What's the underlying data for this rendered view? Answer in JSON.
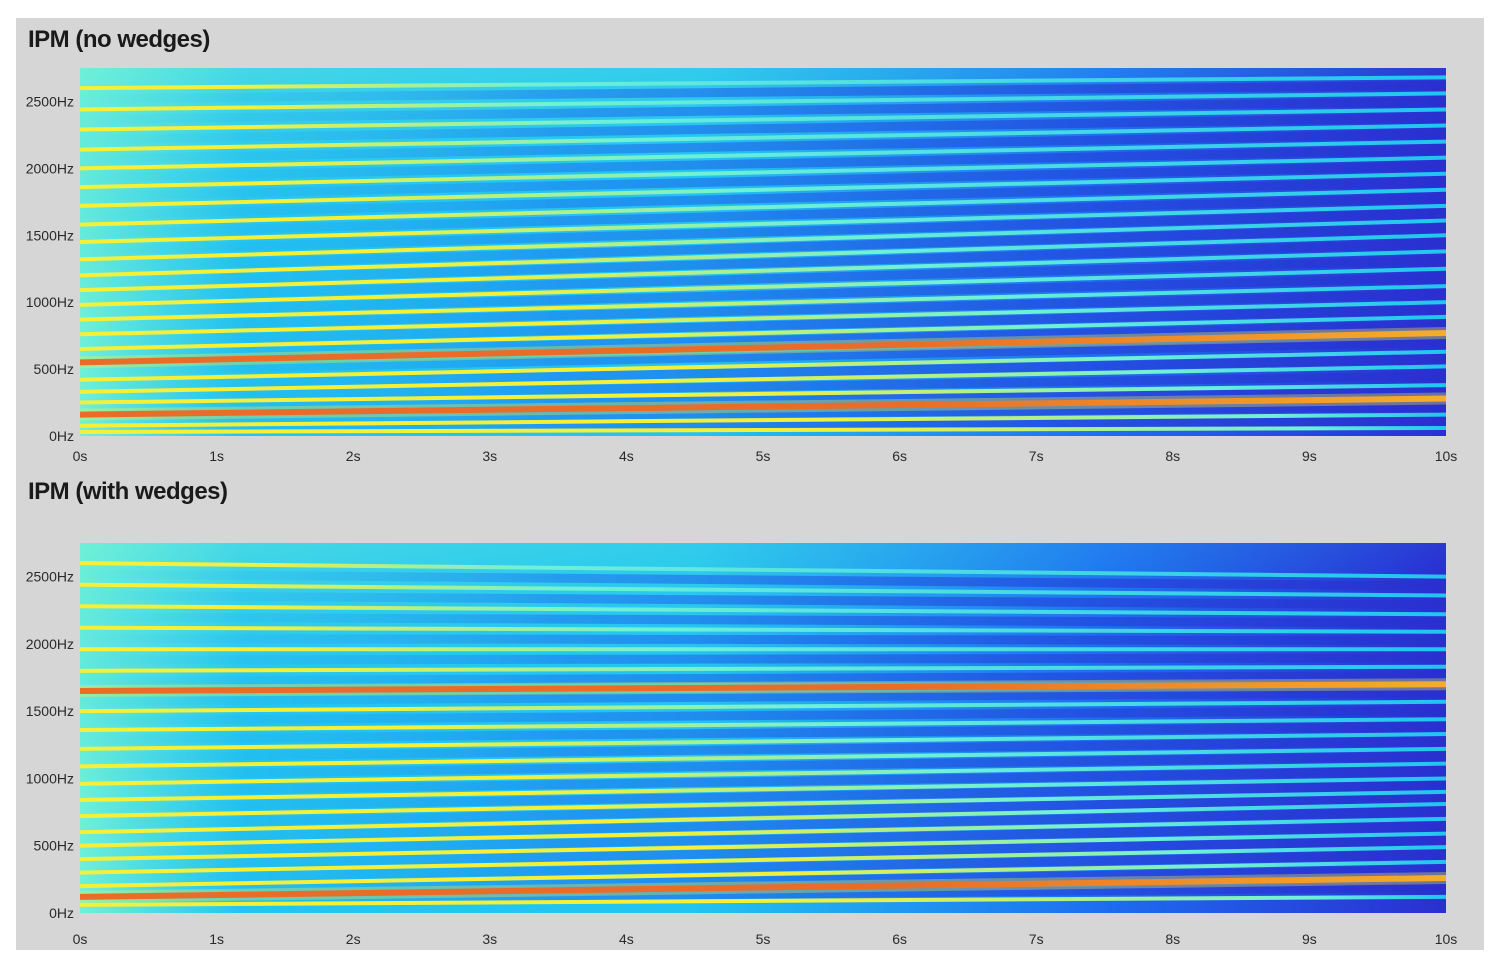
{
  "chart_data": [
    {
      "type": "heatmap",
      "title": "IPM (no wedges)",
      "x_tick_labels": [
        "0s",
        "1s",
        "2s",
        "3s",
        "4s",
        "5s",
        "6s",
        "7s",
        "8s",
        "9s",
        "10s"
      ],
      "y_tick_labels": [
        "0Hz",
        "500Hz",
        "1000Hz",
        "1500Hz",
        "2000Hz",
        "2500Hz"
      ],
      "x_ticks_s": [
        0,
        1,
        2,
        3,
        4,
        5,
        6,
        7,
        8,
        9,
        10
      ],
      "y_ticks_hz": [
        0,
        500,
        1000,
        1500,
        2000,
        2500
      ],
      "xlim": [
        0,
        10
      ],
      "ylim": [
        0,
        2750
      ],
      "colormap": [
        "#2a2fd0",
        "#1d6df0",
        "#22c4f0",
        "#6ff0d8",
        "#f4f03a",
        "#f58a22",
        "#e3261f"
      ],
      "partials": {
        "start_hz": [
          30,
          77,
          160,
          250,
          330,
          420,
          550,
          650,
          760,
          870,
          980,
          1090,
          1200,
          1320,
          1450,
          1580,
          1720,
          1860,
          2000,
          2140,
          2290,
          2440,
          2600
        ],
        "end_hz": [
          60,
          160,
          280,
          380,
          520,
          630,
          770,
          890,
          1000,
          1120,
          1250,
          1380,
          1500,
          1610,
          1720,
          1840,
          1960,
          2080,
          2200,
          2320,
          2440,
          2560,
          2680
        ],
        "strong_index": [
          2,
          6
        ]
      }
    },
    {
      "type": "heatmap",
      "title": "IPM (with wedges)",
      "x_tick_labels": [
        "0s",
        "1s",
        "2s",
        "3s",
        "4s",
        "5s",
        "6s",
        "7s",
        "8s",
        "9s",
        "10s"
      ],
      "y_tick_labels": [
        "0Hz",
        "500Hz",
        "1000Hz",
        "1500Hz",
        "2000Hz",
        "2500Hz"
      ],
      "x_ticks_s": [
        0,
        1,
        2,
        3,
        4,
        5,
        6,
        7,
        8,
        9,
        10
      ],
      "y_ticks_hz": [
        0,
        500,
        1000,
        1500,
        2000,
        2500
      ],
      "xlim": [
        0,
        10
      ],
      "ylim": [
        0,
        2750
      ],
      "colormap": [
        "#2a2fd0",
        "#1d6df0",
        "#22c4f0",
        "#6ff0d8",
        "#f4f03a",
        "#f58a22",
        "#e3261f"
      ],
      "partials": {
        "start_hz": [
          60,
          120,
          200,
          300,
          400,
          500,
          600,
          720,
          840,
          960,
          1090,
          1220,
          1360,
          1500,
          1650,
          1800,
          1960,
          2120,
          2280,
          2440,
          2600
        ],
        "end_hz": [
          120,
          260,
          380,
          490,
          590,
          700,
          810,
          900,
          1000,
          1110,
          1220,
          1330,
          1440,
          1570,
          1700,
          1830,
          1960,
          2090,
          2220,
          2360,
          2500
        ],
        "strong_index": [
          1,
          14
        ]
      }
    }
  ]
}
